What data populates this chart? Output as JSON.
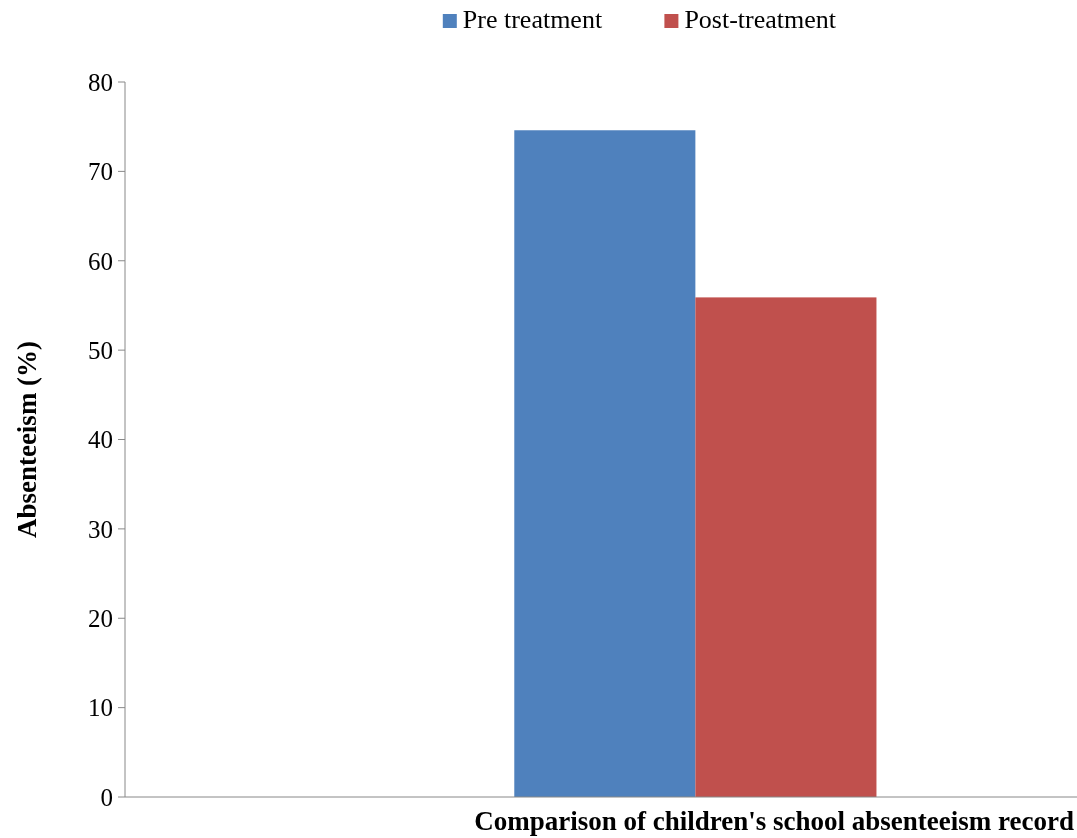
{
  "chart_data": {
    "type": "bar",
    "categories": [
      null
    ],
    "series": [
      {
        "name": "Pre treatment",
        "color": "#4f81bd",
        "values": [
          74.6
        ]
      },
      {
        "name": "Post-treatment",
        "color": "#c0504d",
        "values": [
          55.9
        ]
      }
    ],
    "xlabel": "Comparison of children's school absenteeism record",
    "ylabel": "Absenteeism (%)",
    "ylim": [
      0,
      80
    ],
    "yticks": [
      0,
      10,
      20,
      30,
      40,
      50,
      60,
      70,
      80
    ],
    "legend": "top",
    "grid": false
  }
}
